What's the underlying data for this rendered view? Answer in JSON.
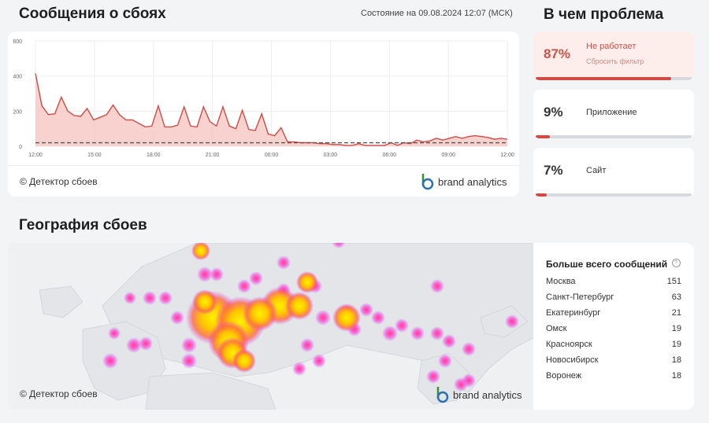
{
  "header": {
    "title": "Сообщения о сбоях",
    "status": "Состояние на 09.08.2024 12:07 (МСК)",
    "problem_title": "В чем проблема",
    "geo_title": "География сбоев"
  },
  "chart_data": {
    "type": "area",
    "x_ticks": [
      "12:00",
      "15:00",
      "18:00",
      "21:00",
      "00:00",
      "03:00",
      "06:00",
      "09:00",
      "12:00"
    ],
    "y_ticks": [
      "0",
      "200",
      "400",
      "600"
    ],
    "ylim": [
      0,
      600
    ],
    "series": [
      {
        "values": [
          415,
          230,
          180,
          185,
          280,
          200,
          175,
          170,
          215,
          150,
          165,
          180,
          235,
          180,
          150,
          150,
          130,
          110,
          115,
          230,
          110,
          110,
          120,
          225,
          115,
          110,
          225,
          140,
          115,
          225,
          115,
          100,
          205,
          95,
          90,
          185,
          70,
          60,
          105,
          25,
          25,
          20,
          20,
          20,
          15,
          15,
          10,
          10,
          5,
          5,
          15,
          5,
          5,
          5,
          5,
          20,
          5,
          20,
          15,
          35,
          25,
          30,
          45,
          35,
          45,
          55,
          45,
          55,
          60,
          55,
          50,
          40,
          45,
          40
        ]
      }
    ],
    "baseline": 20
  },
  "watermark": "© Детектор сбоев",
  "brand": "brand analytics",
  "problems": [
    {
      "pct": "87%",
      "label": "Не работает",
      "sub": "Сбросить фильтр",
      "fill": 0.87
    },
    {
      "pct": "9%",
      "label": "Приложение",
      "fill": 0.09
    },
    {
      "pct": "7%",
      "label": "Сайт",
      "fill": 0.07
    }
  ],
  "stats": {
    "title": "Больше всего сообщений",
    "help_icon": "question-circle-icon",
    "rows": [
      {
        "city": "Москва",
        "count": "151"
      },
      {
        "city": "Санкт-Петербург",
        "count": "63"
      },
      {
        "city": "Екатеринбург",
        "count": "21"
      },
      {
        "city": "Омск",
        "count": "19"
      },
      {
        "city": "Красноярск",
        "count": "19"
      },
      {
        "city": "Новосибирск",
        "count": "18"
      },
      {
        "city": "Воронеж",
        "count": "18"
      }
    ]
  },
  "colors": {
    "accent": "#d14b44",
    "heat_hot": "#fff200",
    "heat_mid": "#ff7a00",
    "heat_cool": "#e040ff"
  }
}
